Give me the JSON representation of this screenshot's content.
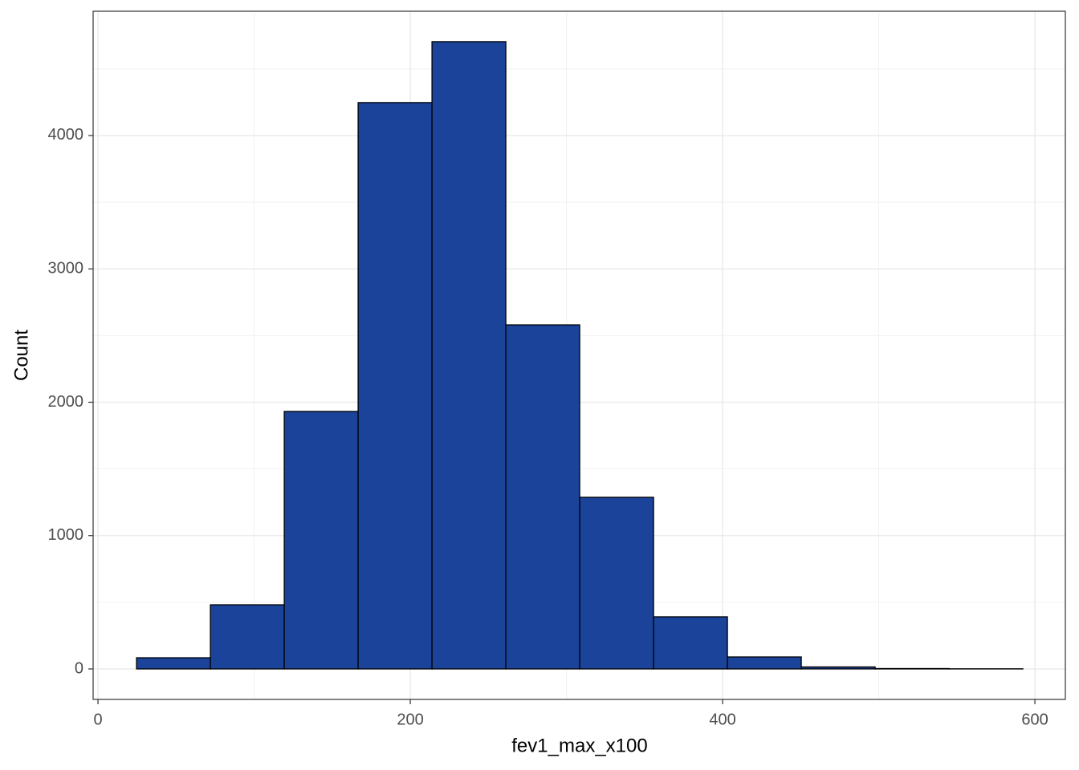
{
  "chart_data": {
    "type": "histogram",
    "xlabel": "fev1_max_x100",
    "ylabel": "Count",
    "bins": [
      24.7,
      72,
      119.3,
      166.6,
      213.9,
      261.2,
      308.5,
      355.8,
      403.1,
      450.4,
      497.7,
      545,
      592.3
    ],
    "values": [
      84,
      481,
      1931,
      4247,
      4704,
      2580,
      1287,
      391,
      90,
      15,
      3,
      1
    ],
    "color": "#1a4399",
    "edgecolor": "#000000",
    "xlim": [
      -3.1,
      619.5
    ],
    "xticks": [
      0,
      200,
      400,
      600
    ],
    "ylim": [
      -228.6,
      4932
    ],
    "yticks": [
      0,
      1000,
      2000,
      3000,
      4000
    ],
    "grid": true
  }
}
